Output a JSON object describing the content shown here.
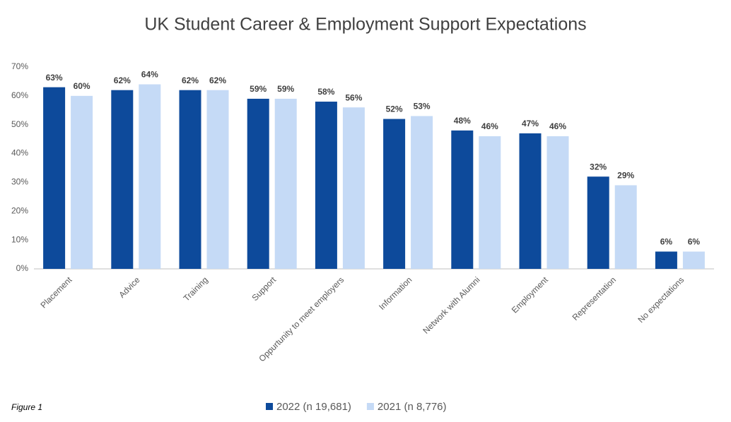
{
  "chart_data": {
    "type": "bar",
    "title": "UK Student Career & Employment Support Expectations",
    "note": "Figure 1",
    "categories": [
      "Placement",
      "Advice",
      "Training",
      "Support",
      "Oppurtunity to meet employers",
      "Information",
      "Network with Alumni",
      "Employment",
      "Representation",
      "No expectations"
    ],
    "series": [
      {
        "name": "2022 (n 19,681)",
        "color": "#0d4a9b",
        "values": [
          63,
          62,
          62,
          59,
          58,
          52,
          48,
          47,
          32,
          6
        ],
        "value_labels": [
          "63%",
          "62%",
          "62%",
          "59%",
          "58%",
          "52%",
          "48%",
          "47%",
          "32%",
          "6%"
        ]
      },
      {
        "name": "2021 (n 8,776)",
        "color": "#c5daf6",
        "values": [
          60,
          64,
          62,
          59,
          56,
          53,
          46,
          46,
          29,
          6
        ],
        "value_labels": [
          "60%",
          "64%",
          "62%",
          "59%",
          "56%",
          "53%",
          "46%",
          "46%",
          "29%",
          "6%"
        ]
      }
    ],
    "ylim": [
      0,
      70
    ],
    "yticks": [
      {
        "value": 0,
        "label": "0%"
      },
      {
        "value": 10,
        "label": "10%"
      },
      {
        "value": 20,
        "label": "20%"
      },
      {
        "value": 30,
        "label": "30%"
      },
      {
        "value": 40,
        "label": "40%"
      },
      {
        "value": 50,
        "label": "50%"
      },
      {
        "value": 60,
        "label": "60%"
      },
      {
        "value": 70,
        "label": "70%"
      }
    ],
    "grid": false,
    "legend": "bottom"
  }
}
